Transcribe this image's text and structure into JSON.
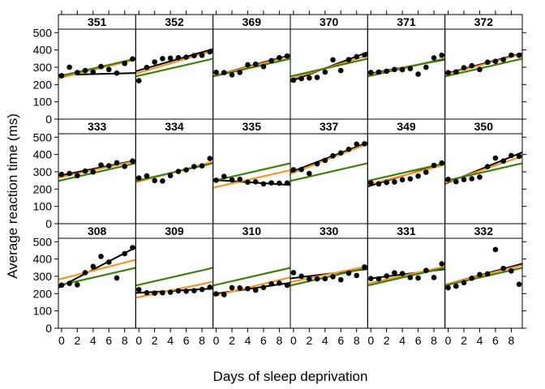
{
  "chart_data": {
    "type": "scatter",
    "xlabel": "Days of sleep deprivation",
    "ylabel": "Average reaction time (ms)",
    "xlim": [
      -0.4,
      9.4
    ],
    "ylim": [
      0,
      520
    ],
    "x_ticks": [
      0,
      2,
      4,
      6,
      8
    ],
    "y_ticks": [
      0,
      100,
      200,
      300,
      400,
      500
    ],
    "x": [
      0,
      1,
      2,
      3,
      4,
      5,
      6,
      7,
      8,
      9
    ],
    "line_colors": {
      "subject_fit": "#000000",
      "partial_pooling": "#F5962C",
      "population": "#3F7F0F"
    },
    "point_color": "#000000",
    "layout_order": [
      [
        "351",
        "352",
        "369",
        "370",
        "371",
        "372"
      ],
      [
        "333",
        "334",
        "335",
        "337",
        "349",
        "350"
      ],
      [
        "308",
        "309",
        "310",
        "330",
        "331",
        "332"
      ]
    ],
    "panels": [
      {
        "subject": "351",
        "y": [
          251,
          300,
          269,
          281,
          272,
          304,
          287,
          266,
          322,
          348
        ],
        "fit": [
          256,
          266
        ],
        "partial": [
          240,
          340
        ],
        "pop": [
          251,
          345
        ]
      },
      {
        "subject": "352",
        "y": [
          222,
          299,
          330,
          350,
          352,
          355,
          358,
          367,
          369,
          389
        ],
        "fit": [
          282,
          400
        ],
        "partial": [
          268,
          390
        ],
        "pop": [
          251,
          345
        ]
      },
      {
        "subject": "369",
        "y": [
          271,
          269,
          256,
          270,
          314,
          318,
          304,
          338,
          355,
          365
        ],
        "fit": [
          255,
          365
        ],
        "partial": [
          255,
          358
        ],
        "pop": [
          251,
          345
        ]
      },
      {
        "subject": "370",
        "y": [
          225,
          234,
          238,
          241,
          272,
          343,
          281,
          344,
          361,
          371
        ],
        "fit": [
          225,
          380
        ],
        "partial": [
          238,
          362
        ],
        "pop": [
          251,
          345
        ]
      },
      {
        "subject": "371",
        "y": [
          270,
          272,
          277,
          287,
          286,
          292,
          260,
          300,
          354,
          369
        ],
        "fit": [
          264,
          341
        ],
        "partial": [
          258,
          345
        ],
        "pop": [
          251,
          345
        ]
      },
      {
        "subject": "372",
        "y": [
          269,
          273,
          297,
          309,
          287,
          329,
          334,
          344,
          370,
          369
        ],
        "fit": [
          266,
          376
        ],
        "partial": [
          261,
          372
        ],
        "pop": [
          251,
          345
        ]
      },
      {
        "subject": "333",
        "y": [
          285,
          290,
          278,
          304,
          299,
          339,
          335,
          352,
          331,
          362
        ],
        "fit": [
          280,
          362
        ],
        "partial": [
          270,
          358
        ],
        "pop": [
          251,
          345
        ]
      },
      {
        "subject": "334",
        "y": [
          264,
          276,
          249,
          247,
          278,
          302,
          311,
          330,
          334,
          377
        ],
        "fit": [
          244,
          352
        ],
        "partial": [
          244,
          353
        ],
        "pop": [
          251,
          345
        ]
      },
      {
        "subject": "335",
        "y": [
          251,
          273,
          253,
          256,
          240,
          242,
          230,
          236,
          234,
          235
        ],
        "fit": [
          252,
          225
        ],
        "partial": [
          212,
          305
        ],
        "pop": [
          251,
          345
        ]
      },
      {
        "subject": "337",
        "y": [
          312,
          313,
          290,
          346,
          366,
          392,
          409,
          430,
          460,
          462
        ],
        "fit": [
          304,
          462
        ],
        "partial": [
          295,
          455
        ],
        "pop": [
          251,
          345
        ]
      },
      {
        "subject": "349",
        "y": [
          236,
          230,
          238,
          241,
          254,
          259,
          275,
          297,
          337,
          351
        ],
        "fit": [
          220,
          345
        ],
        "partial": [
          230,
          336
        ],
        "pop": [
          251,
          345
        ]
      },
      {
        "subject": "350",
        "y": [
          256,
          243,
          255,
          260,
          269,
          330,
          379,
          362,
          394,
          389
        ],
        "fit": [
          238,
          405
        ],
        "partial": [
          242,
          384
        ],
        "pop": [
          251,
          345
        ]
      },
      {
        "subject": "308",
        "y": [
          249,
          259,
          251,
          321,
          357,
          415,
          382,
          290,
          431,
          466
        ],
        "fit": [
          244,
          458
        ],
        "partial": [
          286,
          391
        ],
        "pop": [
          251,
          345
        ]
      },
      {
        "subject": "309",
        "y": [
          223,
          205,
          203,
          205,
          208,
          216,
          214,
          217,
          224,
          237
        ],
        "fit": [
          205,
          228
        ],
        "partial": [
          180,
          265
        ],
        "pop": [
          251,
          345
        ]
      },
      {
        "subject": "310",
        "y": [
          199,
          194,
          234,
          233,
          229,
          220,
          235,
          256,
          261,
          248
        ],
        "fit": [
          200,
          260
        ],
        "partial": [
          190,
          290
        ],
        "pop": [
          251,
          345
        ]
      },
      {
        "subject": "330",
        "y": [
          321,
          300,
          284,
          285,
          286,
          298,
          280,
          318,
          305,
          354
        ],
        "fit": [
          290,
          340
        ],
        "partial": [
          270,
          355
        ],
        "pop": [
          251,
          345
        ]
      },
      {
        "subject": "331",
        "y": [
          287,
          285,
          302,
          320,
          316,
          293,
          290,
          334,
          293,
          372
        ],
        "fit": [
          288,
          339
        ],
        "partial": [
          262,
          352
        ],
        "pop": [
          251,
          345
        ]
      },
      {
        "subject": "332",
        "y": [
          234,
          243,
          263,
          289,
          310,
          314,
          455,
          346,
          331,
          254
        ],
        "fit": [
          256,
          368
        ],
        "partial": [
          256,
          360
        ],
        "pop": [
          251,
          345
        ]
      }
    ]
  }
}
